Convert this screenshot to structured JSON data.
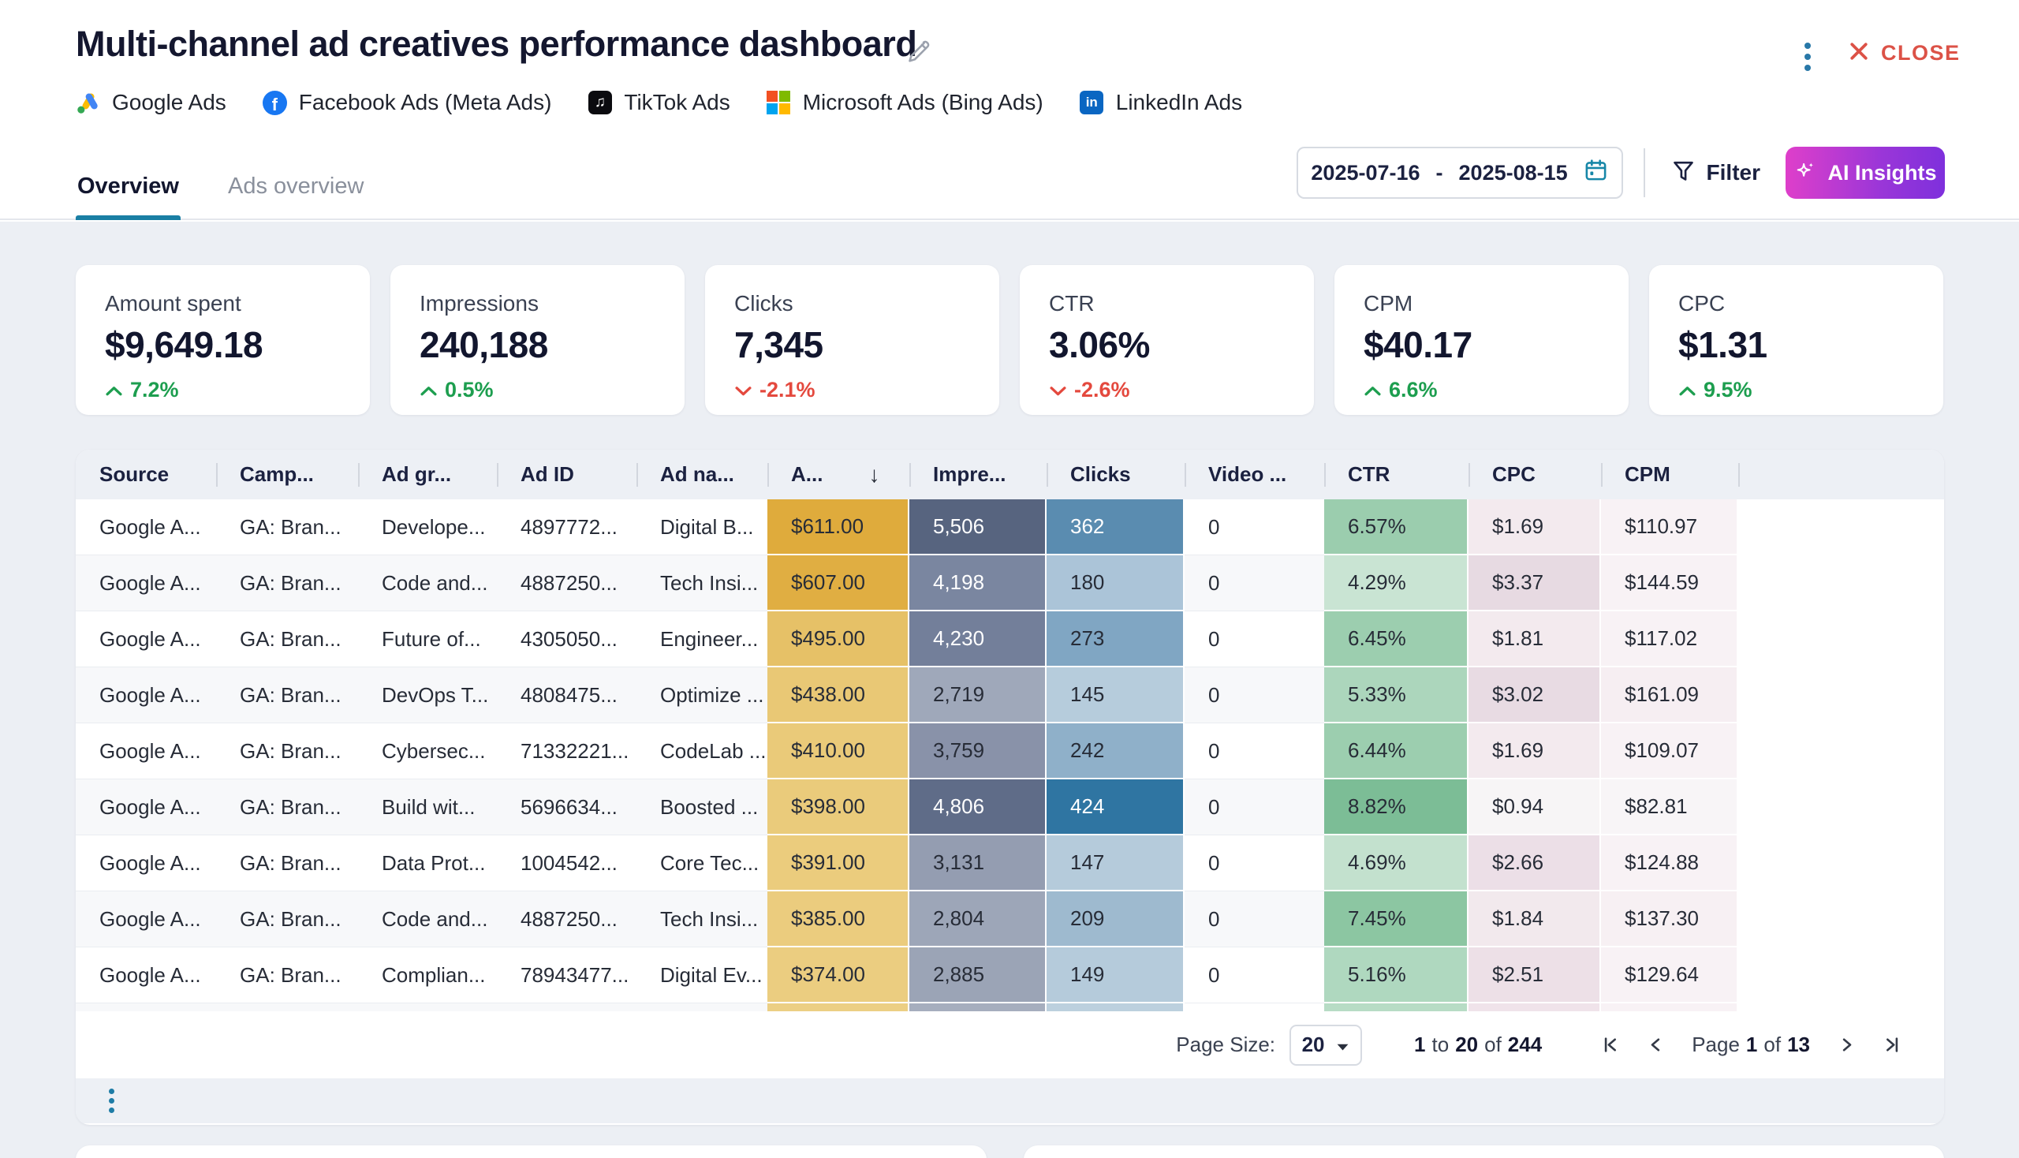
{
  "header": {
    "title": "Multi-channel ad creatives performance dashboard",
    "close_label": "CLOSE",
    "channels": [
      {
        "id": "google-ads",
        "icon": "google-ads-icon",
        "name": "Google Ads"
      },
      {
        "id": "facebook-ads",
        "icon": "facebook-icon",
        "name": "Facebook Ads (Meta Ads)"
      },
      {
        "id": "tiktok-ads",
        "icon": "tiktok-icon",
        "name": "TikTok Ads"
      },
      {
        "id": "microsoft-ads",
        "icon": "microsoft-icon",
        "name": "Microsoft Ads (Bing Ads)"
      },
      {
        "id": "linkedin-ads",
        "icon": "linkedin-icon",
        "name": "LinkedIn Ads"
      }
    ]
  },
  "tabs": [
    {
      "id": "overview",
      "label": "Overview",
      "active": true
    },
    {
      "id": "ads-overview",
      "label": "Ads overview",
      "active": false
    }
  ],
  "controls": {
    "date_start": "2025-07-16",
    "date_separator": "-",
    "date_end": "2025-08-15",
    "filter_label": "Filter",
    "ai_insights_label": "AI Insights"
  },
  "kpis": [
    {
      "label": "Amount spent",
      "value": "$9,649.18",
      "delta": "7.2%",
      "direction": "up"
    },
    {
      "label": "Impressions",
      "value": "240,188",
      "delta": "0.5%",
      "direction": "up"
    },
    {
      "label": "Clicks",
      "value": "7,345",
      "delta": "-2.1%",
      "direction": "down"
    },
    {
      "label": "CTR",
      "value": "3.06%",
      "delta": "-2.6%",
      "direction": "down"
    },
    {
      "label": "CPM",
      "value": "$40.17",
      "delta": "6.6%",
      "direction": "up"
    },
    {
      "label": "CPC",
      "value": "$1.31",
      "delta": "9.5%",
      "direction": "up"
    }
  ],
  "table": {
    "columns": [
      {
        "key": "source",
        "label": "Source"
      },
      {
        "key": "campaign",
        "label": "Camp..."
      },
      {
        "key": "ad_group",
        "label": "Ad gr..."
      },
      {
        "key": "ad_id",
        "label": "Ad ID"
      },
      {
        "key": "ad_name",
        "label": "Ad na..."
      },
      {
        "key": "amount",
        "label": "A...",
        "sorted": "desc"
      },
      {
        "key": "impressions",
        "label": "Impre..."
      },
      {
        "key": "clicks",
        "label": "Clicks"
      },
      {
        "key": "video",
        "label": "Video ..."
      },
      {
        "key": "ctr",
        "label": "CTR"
      },
      {
        "key": "cpc",
        "label": "CPC"
      },
      {
        "key": "cpm",
        "label": "CPM"
      }
    ],
    "rows": [
      {
        "source": "Google A...",
        "campaign": "GA: Bran...",
        "ad_group": "Develope...",
        "ad_id": "4897772...",
        "ad_name": "Digital B...",
        "amount": "$611.00",
        "amount_bg": "#dfab3c",
        "impressions": "5,506",
        "impressions_bg": "#57647f",
        "impressions_fg": "#ffffff",
        "clicks": "362",
        "clicks_bg": "#5a8cb0",
        "clicks_fg": "#ffffff",
        "video": "0",
        "ctr": "6.57%",
        "ctr_bg": "#9bcdae",
        "cpc": "$1.69",
        "cpc_bg": "#f3eaee",
        "cpm": "$110.97",
        "cpm_bg": "#f8f2f5"
      },
      {
        "source": "Google A...",
        "campaign": "GA: Bran...",
        "ad_group": "Code and...",
        "ad_id": "4887250...",
        "ad_name": "Tech Insi...",
        "amount": "$607.00",
        "amount_bg": "#e0ae42",
        "impressions": "4,198",
        "impressions_bg": "#7a86a0",
        "impressions_fg": "#ffffff",
        "clicks": "180",
        "clicks_bg": "#abc4d8",
        "clicks_fg": "",
        "video": "0",
        "ctr": "4.29%",
        "ctr_bg": "#c9e4d3",
        "cpc": "$3.37",
        "cpc_bg": "#e7dae2",
        "cpm": "$144.59",
        "cpm_bg": "#f8f2f5"
      },
      {
        "source": "Google A...",
        "campaign": "GA: Bran...",
        "ad_group": "Future of...",
        "ad_id": "4305050...",
        "ad_name": "Engineer...",
        "amount": "$495.00",
        "amount_bg": "#e6c167",
        "impressions": "4,230",
        "impressions_bg": "#737f9a",
        "impressions_fg": "#ffffff",
        "clicks": "273",
        "clicks_bg": "#80a6c3",
        "clicks_fg": "",
        "video": "0",
        "ctr": "6.45%",
        "ctr_bg": "#9cceaf",
        "cpc": "$1.81",
        "cpc_bg": "#f3eaee",
        "cpm": "$117.02",
        "cpm_bg": "#f8f2f5"
      },
      {
        "source": "Google A...",
        "campaign": "GA: Bran...",
        "ad_group": "DevOps T...",
        "ad_id": "4808475...",
        "ad_name": "Optimize ...",
        "amount": "$438.00",
        "amount_bg": "#e9c875",
        "impressions": "2,719",
        "impressions_bg": "#9fa8ba",
        "impressions_fg": "",
        "clicks": "145",
        "clicks_bg": "#b6ccdc",
        "clicks_fg": "",
        "video": "0",
        "ctr": "5.33%",
        "ctr_bg": "#acd6bc",
        "cpc": "$3.02",
        "cpc_bg": "#e8dbe3",
        "cpm": "$161.09",
        "cpm_bg": "#f6eef2"
      },
      {
        "source": "Google A...",
        "campaign": "GA: Bran...",
        "ad_group": "Cybersec...",
        "ad_id": "71332221...",
        "ad_name": "CodeLab ...",
        "amount": "$410.00",
        "amount_bg": "#eaca79",
        "impressions": "3,759",
        "impressions_bg": "#8992a9",
        "impressions_fg": "",
        "clicks": "242",
        "clicks_bg": "#8fb0c9",
        "clicks_fg": "",
        "video": "0",
        "ctr": "6.44%",
        "ctr_bg": "#9cceaf",
        "cpc": "$1.69",
        "cpc_bg": "#f3eaee",
        "cpm": "$109.07",
        "cpm_bg": "#f8f2f5"
      },
      {
        "source": "Google A...",
        "campaign": "GA: Bran...",
        "ad_group": "Build wit...",
        "ad_id": "5696634...",
        "ad_name": "Boosted ...",
        "amount": "$398.00",
        "amount_bg": "#eacb7b",
        "impressions": "4,806",
        "impressions_bg": "#5f6c88",
        "impressions_fg": "#ffffff",
        "clicks": "424",
        "clicks_bg": "#2f75a2",
        "clicks_fg": "#ffffff",
        "video": "0",
        "ctr": "8.82%",
        "ctr_bg": "#7cbd96",
        "cpc": "$0.94",
        "cpc_bg": "#f7f5f6",
        "cpm": "$82.81",
        "cpm_bg": "#f8f5f7"
      },
      {
        "source": "Google A...",
        "campaign": "GA: Bran...",
        "ad_group": "Data Prot...",
        "ad_id": "1004542...",
        "ad_name": "Core Tec...",
        "amount": "$391.00",
        "amount_bg": "#ebcc7d",
        "impressions": "3,131",
        "impressions_bg": "#949db1",
        "impressions_fg": "",
        "clicks": "147",
        "clicks_bg": "#b5cbdb",
        "clicks_fg": "",
        "video": "0",
        "ctr": "4.69%",
        "ctr_bg": "#c3e1ce",
        "cpc": "$2.66",
        "cpc_bg": "#ecdfe7",
        "cpm": "$124.88",
        "cpm_bg": "#f8f2f5"
      },
      {
        "source": "Google A...",
        "campaign": "GA: Bran...",
        "ad_group": "Code and...",
        "ad_id": "4887250...",
        "ad_name": "Tech Insi...",
        "amount": "$385.00",
        "amount_bg": "#ebcc7e",
        "impressions": "2,804",
        "impressions_bg": "#9da6b8",
        "impressions_fg": "",
        "clicks": "209",
        "clicks_bg": "#9ebacf",
        "clicks_fg": "",
        "video": "0",
        "ctr": "7.45%",
        "ctr_bg": "#8cc6a2",
        "cpc": "$1.84",
        "cpc_bg": "#f2e9ed",
        "cpm": "$137.30",
        "cpm_bg": "#f7f0f3"
      },
      {
        "source": "Google A...",
        "campaign": "GA: Bran...",
        "ad_group": "Complian...",
        "ad_id": "78943477...",
        "ad_name": "Digital Ev...",
        "amount": "$374.00",
        "amount_bg": "#ebcd80",
        "impressions": "2,885",
        "impressions_bg": "#9ba4b6",
        "impressions_fg": "",
        "clicks": "149",
        "clicks_bg": "#b5cbdb",
        "clicks_fg": "",
        "video": "0",
        "ctr": "5.16%",
        "ctr_bg": "#afd8bf",
        "cpc": "$2.51",
        "cpc_bg": "#ede0e7",
        "cpm": "$129.64",
        "cpm_bg": "#f8f2f5"
      }
    ],
    "partial_row": {
      "amount_bg": "#eccf84",
      "impressions_bg": "#a6aebe",
      "clicks_bg": "#bcd0de",
      "video_bg": "#ffffff",
      "ctr_bg": "#b7dcc5",
      "cpc_bg": "#f0e3ea",
      "cpm_bg": "#f8f2f5"
    },
    "pagination": {
      "page_size_label": "Page Size:",
      "page_size": "20",
      "range_from": "1",
      "range_to_word": "to",
      "range_to": "20",
      "range_of_word": "of",
      "range_total": "244",
      "page_word": "Page",
      "page_current": "1",
      "page_of_word": "of",
      "page_total": "13"
    }
  }
}
